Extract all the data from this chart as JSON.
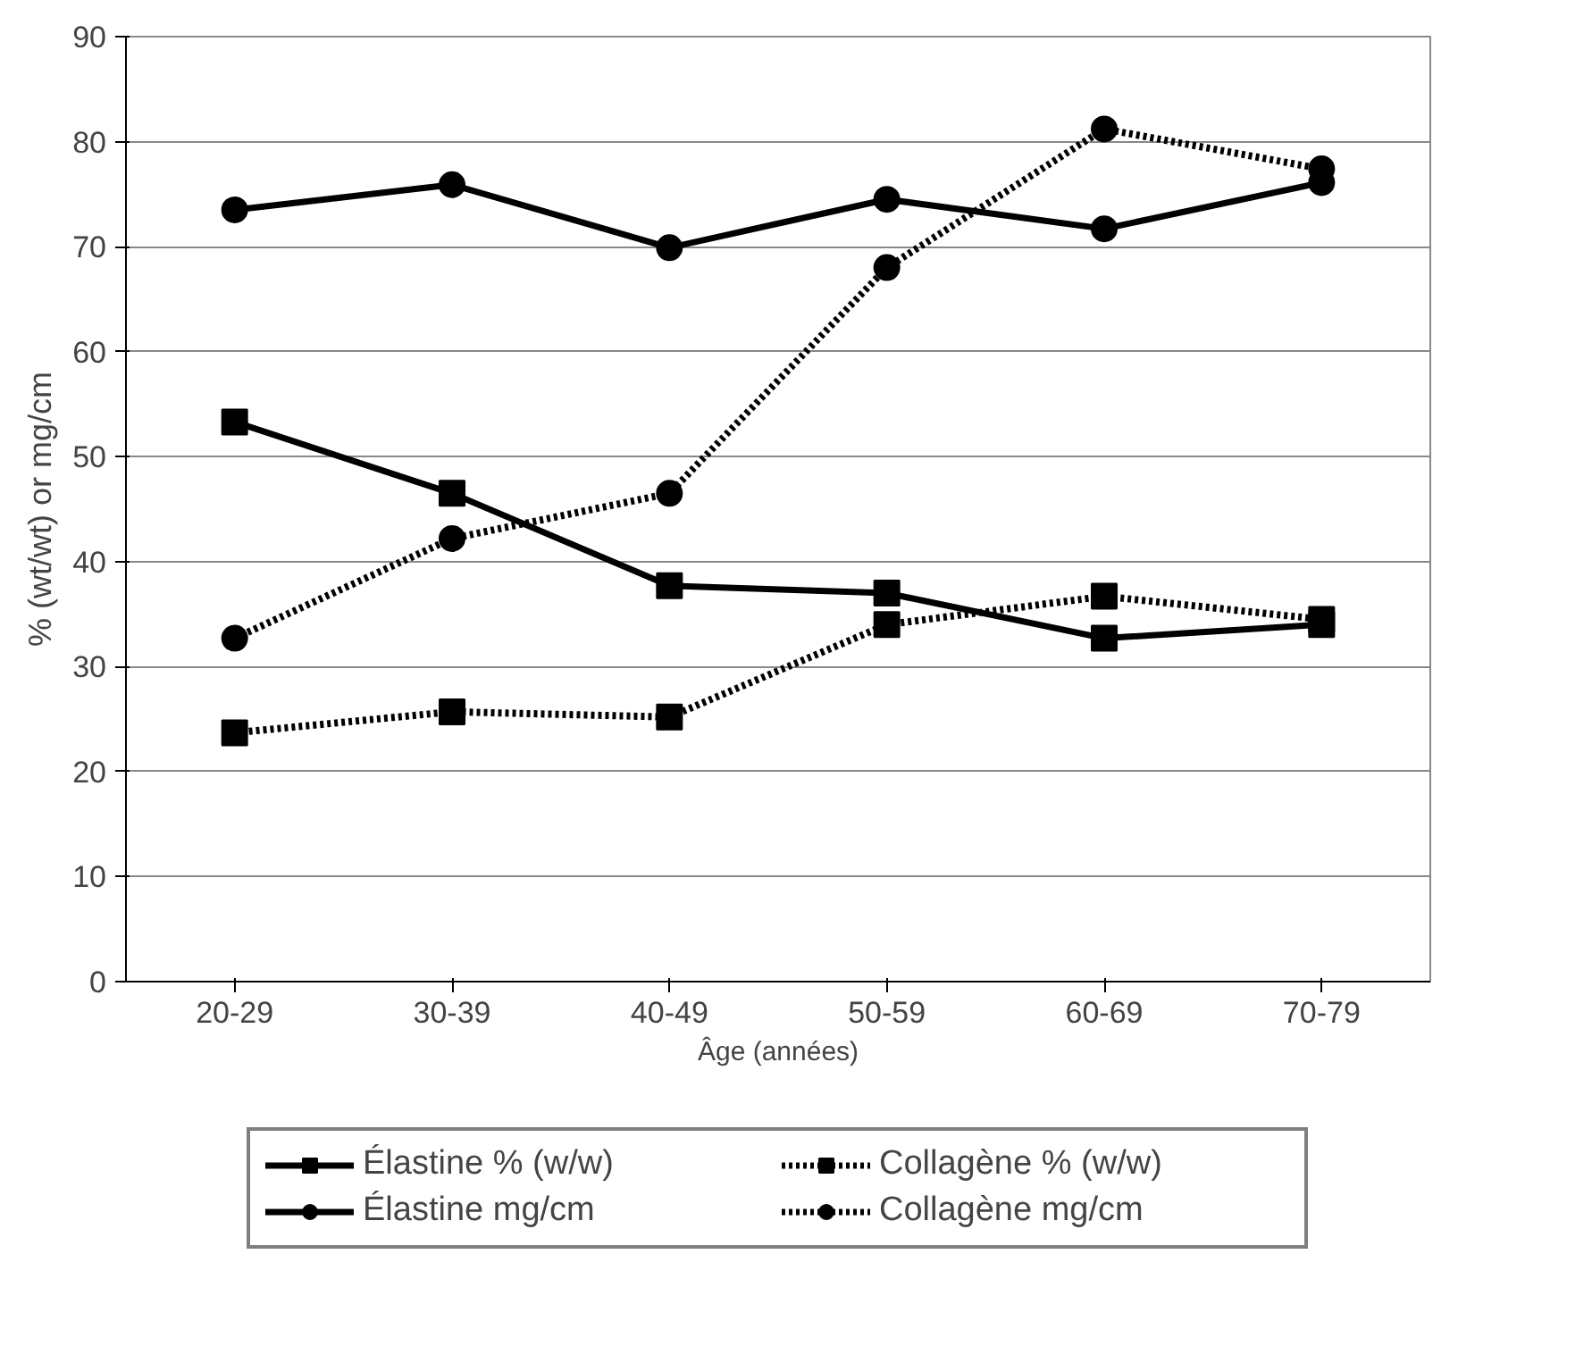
{
  "chart_data": {
    "type": "line",
    "xlabel": "Âge (années)",
    "ylabel": "% (wt/wt) or mg/cm",
    "categories": [
      "20-29",
      "30-39",
      "40-49",
      "50-59",
      "60-69",
      "70-79"
    ],
    "series": [
      {
        "name": "Élastine % (w/w)",
        "color": "#000000",
        "marker": "square",
        "line_style": "solid",
        "values": [
          53.3,
          46.5,
          37.7,
          37,
          32.7,
          34
        ]
      },
      {
        "name": "Élastine mg/cm",
        "color": "#000000",
        "marker": "circle",
        "line_style": "solid",
        "values": [
          73.5,
          75.9,
          69.9,
          74.5,
          71.7,
          76.1
        ]
      },
      {
        "name": "Collagène % (w/w)",
        "color": "#000000",
        "marker": "square",
        "line_style": "dotted",
        "values": [
          23.7,
          25.7,
          25.2,
          34,
          36.7,
          34.5
        ]
      },
      {
        "name": "Collagène mg/cm",
        "color": "#000000",
        "marker": "circle",
        "line_style": "dotted",
        "values": [
          32.7,
          42.2,
          46.5,
          68,
          81.2,
          77.4
        ]
      }
    ],
    "ylim": [
      0,
      90
    ],
    "yticks": [
      0,
      10,
      20,
      30,
      40,
      50,
      60,
      70,
      80,
      90
    ],
    "grid": "y",
    "legend": "bottom"
  }
}
